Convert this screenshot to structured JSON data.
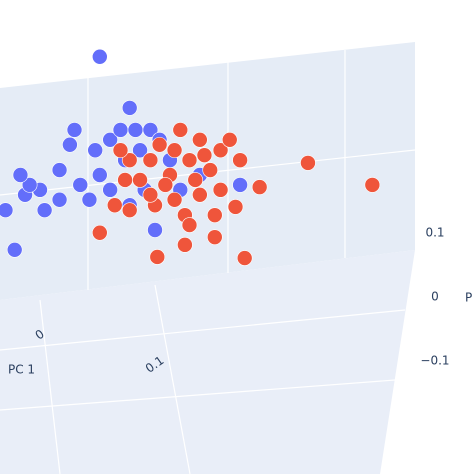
{
  "chart_data": {
    "type": "scatter3d",
    "x_title": "PC 1",
    "z_title": "P",
    "xticks": [
      0,
      0.1
    ],
    "zticks": [
      0.1,
      0,
      {
        "value": -0.1,
        "label": "−0.1"
      }
    ],
    "series": [
      {
        "color": "#636efa",
        "x": [
          0.052,
          0.078,
          -0.03,
          -0.022,
          -0.013,
          0,
          0.017,
          0.03,
          0.035,
          0.048,
          0.061,
          0.07,
          0.083,
          0.096,
          0.052,
          0.061,
          0.074,
          0.087,
          0.043,
          0.017,
          -0.009,
          0.004,
          0.104,
          0.113,
          0.078,
          0.091,
          0.122,
          0.139,
          0.174,
          0.1,
          0.026,
          -0.017
        ],
        "values": [
          0.315,
          0.222,
          0.036,
          -0.036,
          0.064,
          0.073,
          0.109,
          0.182,
          0.082,
          0.145,
          0.164,
          0.182,
          0.182,
          0.182,
          0.1,
          0.073,
          0.127,
          0.145,
          0.055,
          0.055,
          0.082,
          0.036,
          0.164,
          0.127,
          0.045,
          0.073,
          0.073,
          0.1,
          0.082,
          0,
          0.155,
          0.1
        ]
      },
      {
        "color": "#ef553b",
        "x": [
          0.052,
          0.102,
          0.126,
          0.178,
          0.152,
          0.17,
          0.191,
          0.233,
          0.289,
          0.174,
          0.157,
          0.139,
          0.122,
          0.104,
          0.096,
          0.078,
          0.087,
          0.113,
          0.13,
          0.148,
          0.139,
          0.117,
          0.1,
          0.078,
          0.065,
          0.074,
          0.126,
          0.157,
          0.13,
          0.109,
          0.143,
          0.117,
          0.07,
          0.165,
          0.096,
          0.135,
          0.152
        ],
        "values": [
          -0.005,
          -0.049,
          -0.027,
          -0.051,
          -0.013,
          0.042,
          0.078,
          0.122,
          0.082,
          0.127,
          0.145,
          0.164,
          0.182,
          0.155,
          0.127,
          0.127,
          0.091,
          0.1,
          0.127,
          0.109,
          0.064,
          0.055,
          0.045,
          0.036,
          0.045,
          0.091,
          0.027,
          0.073,
          0.009,
          0.082,
          0.136,
          0.145,
          0.145,
          0.164,
          0.064,
          0.091,
          0.027
        ]
      }
    ]
  }
}
